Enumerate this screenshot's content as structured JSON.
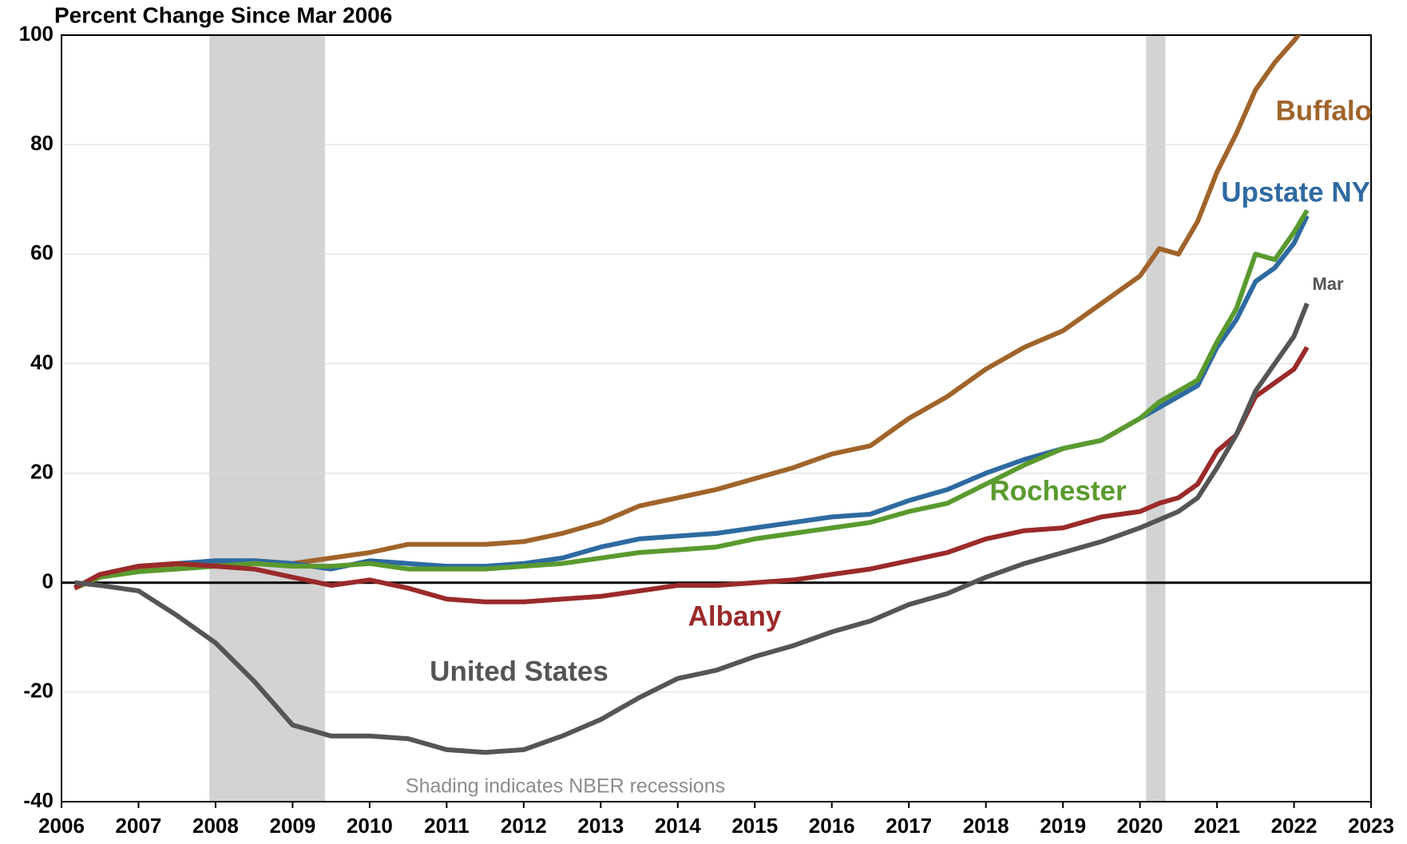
{
  "chart_data": {
    "type": "line",
    "title": "Percent Change Since Mar 2006",
    "annotations": [
      "Shading indicates NBER recessions",
      "Mar"
    ],
    "recessions": [
      [
        2007.92,
        2009.42
      ],
      [
        2020.08,
        2020.33
      ]
    ],
    "x": [
      2006.17,
      2006.5,
      2007,
      2007.5,
      2008,
      2008.5,
      2009,
      2009.5,
      2010,
      2010.5,
      2011,
      2011.5,
      2012,
      2012.5,
      2013,
      2013.5,
      2014,
      2014.5,
      2015,
      2015.5,
      2016,
      2016.5,
      2017,
      2017.5,
      2018,
      2018.5,
      2019,
      2019.5,
      2020,
      2020.25,
      2020.5,
      2020.75,
      2021,
      2021.25,
      2021.5,
      2021.75,
      2022,
      2022.17
    ],
    "series": [
      {
        "name": "Buffalo",
        "color": "#a0642a",
        "values": [
          -1,
          1,
          2.5,
          3,
          3.5,
          4,
          3.5,
          4.5,
          5.5,
          7,
          7,
          7,
          7.5,
          9,
          11,
          14,
          15.5,
          17,
          19,
          21,
          23.5,
          25,
          30,
          34,
          39,
          43,
          46,
          51,
          56,
          61,
          60,
          66,
          75,
          82,
          90,
          95,
          99,
          102
        ]
      },
      {
        "name": "Upstate NY",
        "color": "#2e6aa1",
        "values": [
          -1,
          1.5,
          3,
          3.5,
          4,
          4,
          3.5,
          2.5,
          4,
          3.5,
          3,
          3,
          3.5,
          4.5,
          6.5,
          8,
          8.5,
          9,
          10,
          11,
          12,
          12.5,
          15,
          17,
          20,
          22.5,
          24.5,
          26,
          30,
          32,
          34,
          36,
          43,
          48,
          55,
          57.5,
          62,
          67
        ]
      },
      {
        "name": "Rochester",
        "color": "#5a9a2e",
        "values": [
          -1,
          1,
          2,
          2.5,
          3,
          3.5,
          3,
          3,
          3.5,
          2.5,
          2.5,
          2.5,
          3,
          3.5,
          4.5,
          5.5,
          6,
          6.5,
          8,
          9,
          10,
          11,
          13,
          14.5,
          18,
          21.5,
          24.5,
          26,
          30,
          33,
          35,
          37,
          44,
          50,
          60,
          59,
          64,
          68
        ]
      },
      {
        "name": "Albany",
        "color": "#9b2a2a",
        "values": [
          -1,
          1.5,
          3,
          3.5,
          3,
          2.5,
          1,
          -0.5,
          0.5,
          -1,
          -3,
          -3.5,
          -3.5,
          -3,
          -2.5,
          -1.5,
          -0.5,
          -0.5,
          0,
          0.5,
          1.5,
          2.5,
          4,
          5.5,
          8,
          9.5,
          10,
          12,
          13,
          14.5,
          15.5,
          18,
          24,
          27,
          34,
          36.5,
          39,
          43
        ]
      },
      {
        "name": "United States",
        "color": "#555555",
        "values": [
          0,
          -0.5,
          -1.5,
          -6,
          -11,
          -18,
          -26,
          -28,
          -28,
          -28.5,
          -30.5,
          -31,
          -30.5,
          -28,
          -25,
          -21,
          -17.5,
          -16,
          -13.5,
          -11.5,
          -9,
          -7,
          -4,
          -2,
          1,
          3.5,
          5.5,
          7.5,
          10,
          11.5,
          13,
          15.5,
          21,
          27,
          35,
          40,
          45,
          51
        ]
      }
    ],
    "xlim": [
      2006,
      2023
    ],
    "xticks": [
      2006,
      2007,
      2008,
      2009,
      2010,
      2011,
      2012,
      2013,
      2014,
      2015,
      2016,
      2017,
      2018,
      2019,
      2020,
      2021,
      2022,
      2023
    ],
    "ylim": [
      -40,
      100
    ],
    "yticks": [
      -40,
      -20,
      0,
      20,
      40,
      60,
      80,
      100
    ],
    "grid": true
  }
}
